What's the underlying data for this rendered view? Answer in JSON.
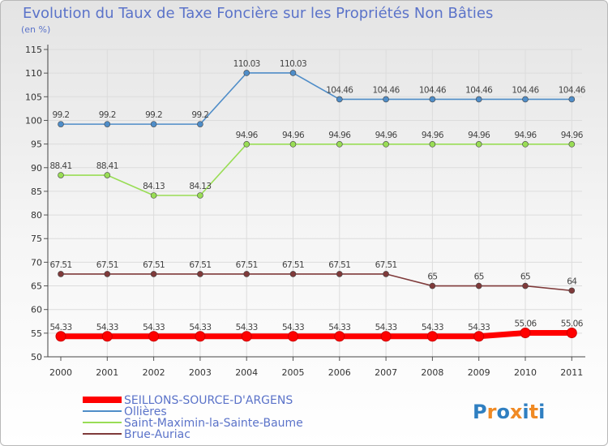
{
  "chart_data": {
    "type": "line",
    "title": "Evolution du Taux de Taxe Foncière sur les Propriétés Non Bâties",
    "unit_label": "(en %)",
    "xlabel": "",
    "ylabel": "(en %)",
    "ylim": [
      50,
      115
    ],
    "yticks": [
      50,
      55,
      60,
      65,
      70,
      75,
      80,
      85,
      90,
      95,
      100,
      105,
      110,
      115
    ],
    "x": [
      2000,
      2001,
      2002,
      2003,
      2004,
      2005,
      2006,
      2007,
      2008,
      2009,
      2010,
      2011
    ],
    "grid": true,
    "series": [
      {
        "name": "SEILLONS-SOURCE-D'ARGENS",
        "color": "#ff0000",
        "values": [
          54.33,
          54.33,
          54.33,
          54.33,
          54.33,
          54.33,
          54.33,
          54.33,
          54.33,
          54.33,
          55.06,
          55.06
        ],
        "labels": [
          "54.33",
          "54.33",
          "54.33",
          "54.33",
          "54.33",
          "54.33",
          "54.33",
          "54.33",
          "54.33",
          "54.33",
          "55.06",
          "55.06"
        ]
      },
      {
        "name": "Ollières",
        "color": "#4f8dc8",
        "values": [
          99.2,
          99.2,
          99.2,
          99.2,
          110.03,
          110.03,
          104.46,
          104.46,
          104.46,
          104.46,
          104.46,
          104.46
        ],
        "labels": [
          "99.2",
          "99.2",
          "99.2",
          "99.2",
          "110.03",
          "110.03",
          "104.46",
          "104.46",
          "104.46",
          "104.46",
          "104.46",
          "104.46"
        ]
      },
      {
        "name": "Saint-Maximin-la-Sainte-Baume",
        "color": "#99dd55",
        "values": [
          88.41,
          88.41,
          84.13,
          84.13,
          94.96,
          94.96,
          94.96,
          94.96,
          94.96,
          94.96,
          94.96,
          94.96
        ],
        "labels": [
          "88.41",
          "88.41",
          "84.13",
          "84.13",
          "94.96",
          "94.96",
          "94.96",
          "94.96",
          "94.96",
          "94.96",
          "94.96",
          "94.96"
        ]
      },
      {
        "name": "Brue-Auriac",
        "color": "#7f3a3a",
        "values": [
          67.51,
          67.51,
          67.51,
          67.51,
          67.51,
          67.51,
          67.51,
          67.51,
          65,
          65,
          65,
          64
        ],
        "labels": [
          "67.51",
          "67.51",
          "67.51",
          "67.51",
          "67.51",
          "67.51",
          "67.51",
          "67.51",
          "65",
          "65",
          "65",
          "64"
        ]
      }
    ]
  },
  "logo": {
    "text": "Proxiti",
    "letter_colors": [
      "#2f7fc1",
      "#f08a24",
      "#2f7fc1",
      "#f08a24",
      "#2f7fc1",
      "#f08a24",
      "#2f7fc1"
    ]
  }
}
